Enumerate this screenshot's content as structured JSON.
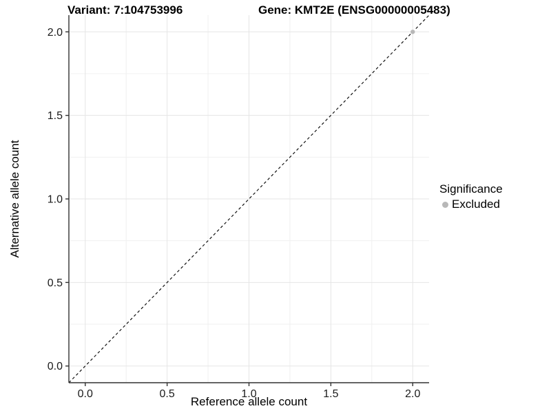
{
  "chart_data": {
    "type": "scatter",
    "title_variant": "Variant: 7:104753996",
    "title_gene": "Gene: KMT2E (ENSG00000005483)",
    "xlabel": "Reference allele count",
    "ylabel": "Alternative allele count",
    "xlim": [
      -0.1,
      2.1
    ],
    "ylim": [
      -0.1,
      2.1
    ],
    "xticks": [
      0.0,
      0.5,
      1.0,
      1.5,
      2.0
    ],
    "yticks": [
      0.0,
      0.5,
      1.0,
      1.5,
      2.0
    ],
    "xtick_labels": [
      "0.0",
      "0.5",
      "1.0",
      "1.5",
      "2.0"
    ],
    "ytick_labels": [
      "0.0",
      "0.5",
      "1.0",
      "1.5",
      "2.0"
    ],
    "grid": true,
    "reference_line": {
      "equation": "y = x",
      "style": "dashed",
      "color": "#111111"
    },
    "series": [
      {
        "name": "Excluded",
        "color": "#b8b8b8",
        "points": [
          {
            "x": 2.0,
            "y": 2.0
          }
        ]
      }
    ],
    "legend": {
      "title": "Significance",
      "position": "right",
      "items": [
        {
          "label": "Excluded",
          "color": "#b8b8b8"
        }
      ]
    },
    "colors": {
      "background": "#ffffff",
      "grid_major": "#e5e5e5",
      "grid_minor": "#f0f0f0",
      "axis": "#303030",
      "tick_text": "#1a1a1a"
    }
  }
}
